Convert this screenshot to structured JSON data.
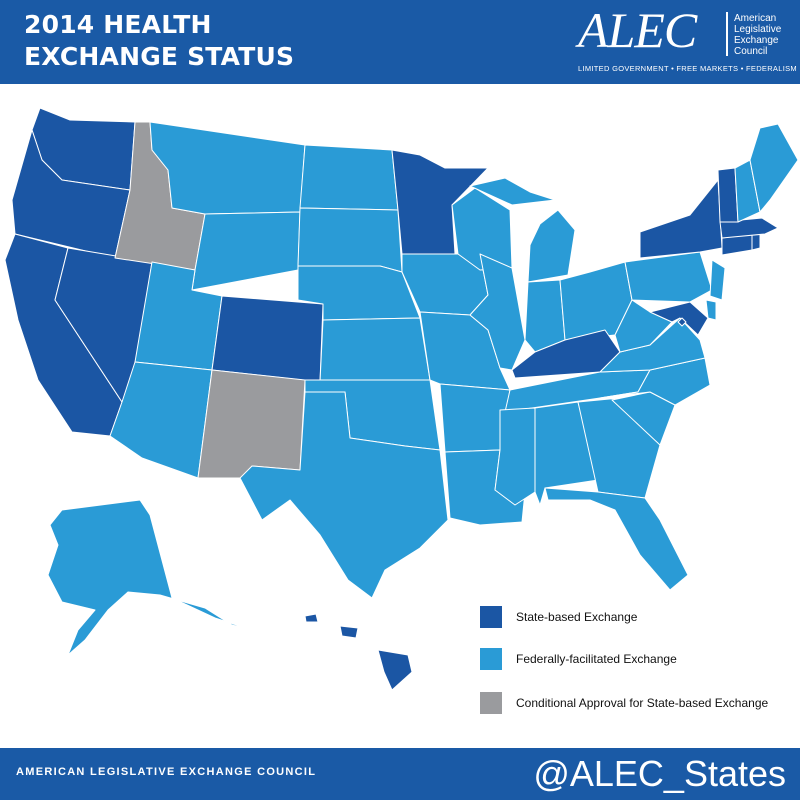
{
  "header": {
    "title_line1": "2014 HEALTH",
    "title_line2": "EXCHANGE STATUS",
    "logo": {
      "wordmark": "ALEC",
      "org_line1": "American",
      "org_line2": "Legislative",
      "org_line3": "Exchange",
      "org_line4": "Council",
      "tagline": "LIMITED GOVERNMENT • FREE MARKETS • FEDERALISM"
    }
  },
  "colors": {
    "header_bg": "#1a5aa6",
    "state_based": "#1b56a4",
    "federally_facilitated": "#2a9bd6",
    "conditional": "#9a9b9e",
    "border": "#ffffff"
  },
  "legend": [
    {
      "label": "State-based Exchange",
      "color": "#1b56a4"
    },
    {
      "label": "Federally-facilitated Exchange",
      "color": "#2a9bd6"
    },
    {
      "label": "Conditional Approval for State-based Exchange",
      "color": "#9a9b9e"
    }
  ],
  "map": {
    "states": {
      "WA": "state-based",
      "OR": "state-based",
      "CA": "state-based",
      "NV": "state-based",
      "ID": "conditional",
      "MT": "federal",
      "WY": "federal",
      "UT": "federal",
      "AZ": "federal",
      "CO": "state-based",
      "NM": "conditional",
      "ND": "federal",
      "SD": "federal",
      "NE": "federal",
      "KS": "federal",
      "OK": "federal",
      "TX": "federal",
      "MN": "state-based",
      "IA": "federal",
      "MO": "federal",
      "AR": "federal",
      "LA": "federal",
      "WI": "federal",
      "IL": "federal",
      "MI": "federal",
      "IN": "federal",
      "OH": "federal",
      "KY": "state-based",
      "TN": "federal",
      "MS": "federal",
      "AL": "federal",
      "GA": "federal",
      "FL": "federal",
      "SC": "federal",
      "NC": "federal",
      "VA": "federal",
      "WV": "federal",
      "PA": "federal",
      "NY": "state-based",
      "VT": "state-based",
      "NH": "federal",
      "ME": "federal",
      "MA": "state-based",
      "CT": "state-based",
      "RI": "state-based",
      "NJ": "federal",
      "DE": "federal",
      "MD": "state-based",
      "DC": "state-based",
      "AK": "federal",
      "HI": "state-based"
    }
  },
  "footer": {
    "org": "AMERICAN LEGISLATIVE EXCHANGE COUNCIL",
    "handle": "@ALEC_States"
  }
}
